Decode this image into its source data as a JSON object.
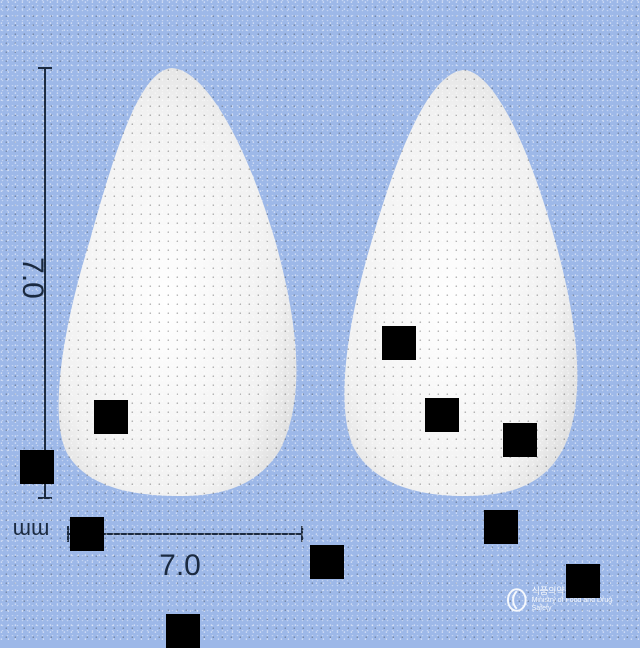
{
  "image": {
    "subject": "two white teardrop-shaped tablets on blue speckled background",
    "dimension_vertical": "7.0",
    "dimension_horizontal": "7.0",
    "unit": "mm",
    "watermark_korean": "식품의약품안전처",
    "watermark_english": "Ministry of Food and Drug Safety"
  },
  "colors": {
    "background": "#9db8e8",
    "tablet": "#f4f4f4",
    "dimension_line": "#1b2a40",
    "occlusion_square": "#000000"
  }
}
